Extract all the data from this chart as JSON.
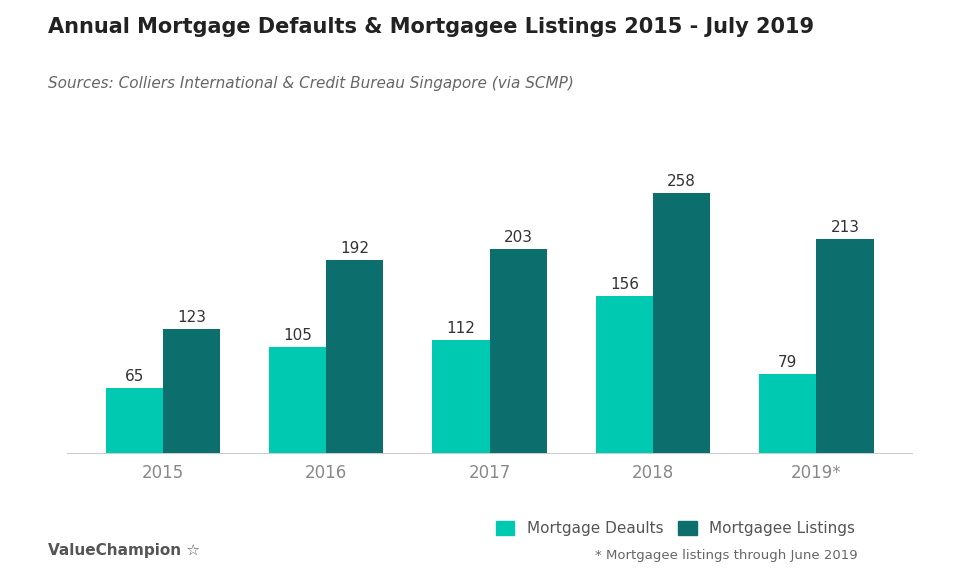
{
  "title": "Annual Mortgage Defaults & Mortgagee Listings 2015 - July 2019",
  "subtitle": "Sources: Colliers International & Credit Bureau Singapore (via SCMP)",
  "categories": [
    "2015",
    "2016",
    "2017",
    "2018",
    "2019*"
  ],
  "defaults": [
    65,
    105,
    112,
    156,
    79
  ],
  "listings": [
    123,
    192,
    203,
    258,
    213
  ],
  "defaults_color": "#00C9B1",
  "listings_color": "#0D6E6E",
  "background_color": "#ffffff",
  "bar_width": 0.35,
  "ylim": [
    0,
    300
  ],
  "legend_labels": [
    "Mortgage Deaults",
    "Mortgagee Listings"
  ],
  "footnote": "* Mortgagee listings through June 2019",
  "branding": "ValueChampion",
  "title_fontsize": 15,
  "subtitle_fontsize": 11,
  "label_fontsize": 11,
  "tick_fontsize": 12,
  "legend_fontsize": 11
}
